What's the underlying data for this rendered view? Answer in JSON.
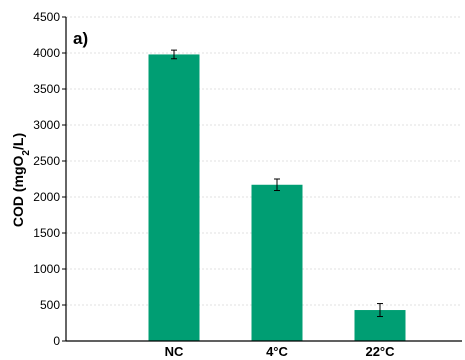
{
  "chart_data": {
    "type": "bar",
    "panel_label": "a)",
    "categories": [
      "NC",
      "4°C",
      "22°C"
    ],
    "values": [
      3980,
      2170,
      430
    ],
    "errors": [
      60,
      80,
      90
    ],
    "ylabel": {
      "main": "COD (mgO",
      "sub": "2",
      "tail": "/L)"
    },
    "ylim": [
      0,
      4500
    ],
    "yticks": [
      0,
      500,
      1000,
      1500,
      2000,
      2500,
      3000,
      3500,
      4000,
      4500
    ],
    "grid": true,
    "colors": {
      "bar": "#009E73",
      "axis": "#000000",
      "grid": "#d9d9d9"
    }
  }
}
